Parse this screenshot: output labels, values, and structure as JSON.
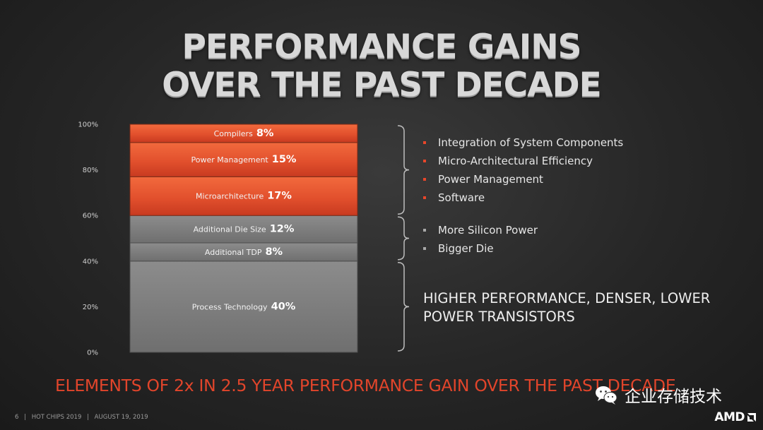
{
  "title": {
    "line1": "PERFORMANCE GAINS",
    "line2": "OVER THE PAST DECADE"
  },
  "chart_data": {
    "type": "bar",
    "stacked": true,
    "ylim": [
      0,
      100
    ],
    "yticks": [
      {
        "value": 0,
        "label": "0%"
      },
      {
        "value": 20,
        "label": "20%"
      },
      {
        "value": 40,
        "label": "40%"
      },
      {
        "value": 60,
        "label": "60%"
      },
      {
        "value": 80,
        "label": "80%"
      },
      {
        "value": 100,
        "label": "100%"
      }
    ],
    "segments": [
      {
        "label": "Process Technology",
        "value": 40,
        "value_label": "40%",
        "color": "#838383"
      },
      {
        "label": "Additional TDP",
        "value": 8,
        "value_label": "8%",
        "color": "#7a7a7a"
      },
      {
        "label": "Additional Die Size",
        "value": 12,
        "value_label": "12%",
        "color": "#7e7e7e"
      },
      {
        "label": "Microarchitecture",
        "value": 17,
        "value_label": "17%",
        "color": "#e0502e"
      },
      {
        "label": "Power Management",
        "value": 15,
        "value_label": "15%",
        "color": "#e55531"
      },
      {
        "label": "Compilers",
        "value": 8,
        "value_label": "8%",
        "color": "#e14f2c"
      }
    ],
    "grid": false,
    "legend": "none"
  },
  "groups": {
    "architecture": {
      "range": [
        60,
        100
      ],
      "bullets": [
        "Integration of System Components",
        "Micro-Architectural Efficiency",
        "Power Management",
        "Software"
      ],
      "bullet_color": "#e8462a"
    },
    "silicon": {
      "range": [
        40,
        60
      ],
      "bullets": [
        "More Silicon Power",
        "Bigger Die"
      ],
      "bullet_color": "#a8a8a8"
    },
    "process": {
      "range": [
        0,
        40
      ],
      "description": "HIGHER PERFORMANCE, DENSER, LOWER POWER TRANSISTORS"
    }
  },
  "bottom_line": "ELEMENTS OF 2x IN 2.5 YEAR PERFORMANCE GAIN OVER THE PAST DECADE",
  "footer": {
    "page": "6",
    "event": "HOT CHIPS 2019",
    "date": "AUGUST 19, 2019",
    "separator": "|"
  },
  "watermark": {
    "text": "企业存储技术",
    "icon": "wechat-icon"
  },
  "logo": {
    "text": "AMD",
    "icon": "amd-arrow-icon"
  },
  "colors": {
    "accent": "#e2452b",
    "background": "#262626"
  }
}
